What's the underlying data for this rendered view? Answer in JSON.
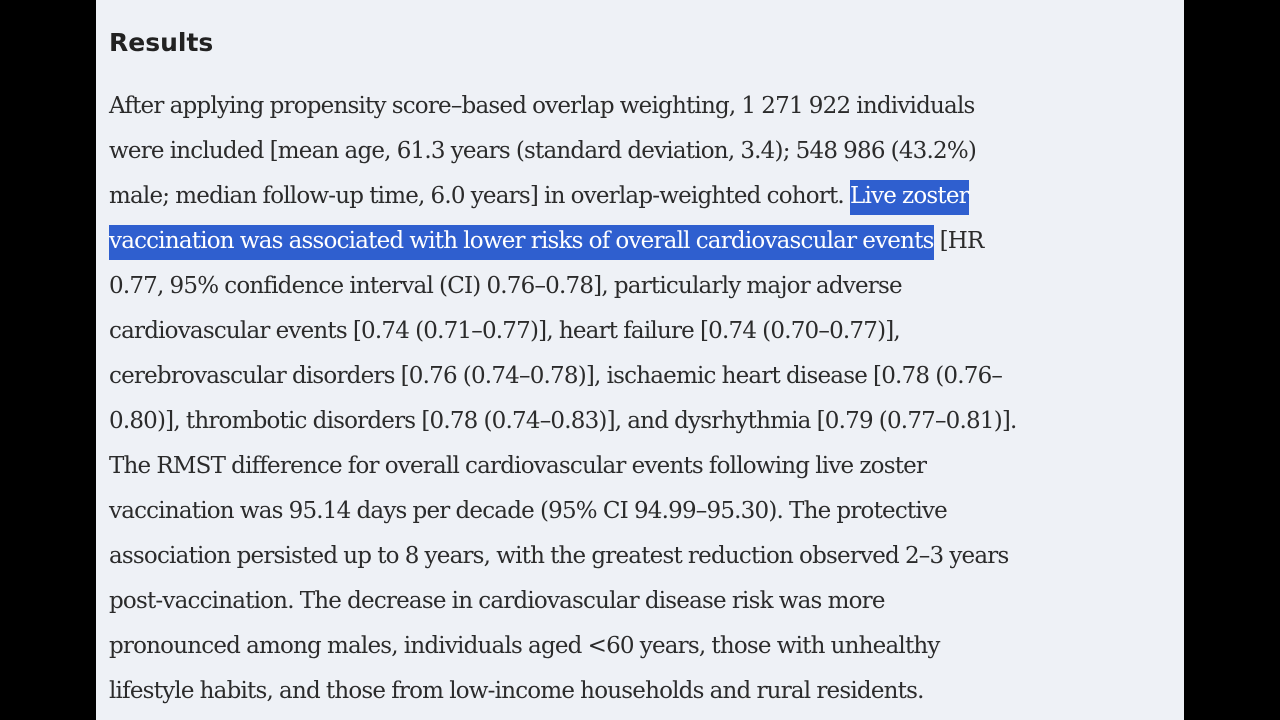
{
  "section": {
    "heading": "Results"
  },
  "paragraph": {
    "line1": "After applying propensity score–based overlap weighting, 1 271 922 individuals",
    "line2": "were included [mean age, 61.3 years (standard deviation, 3.4); 548 986 (43.2%)",
    "line3_plain": "male; median follow-up time, 6.0 years] in overlap-weighted cohort. ",
    "line3_highlight": "Live zoster",
    "line4_highlight": "vaccination was associated with lower risks of overall cardiovascular events",
    "line4_plain": " [HR",
    "line5": "0.77, 95% confidence interval (CI) 0.76–0.78], particularly major adverse",
    "line6": "cardiovascular events [0.74 (0.71–0.77)], heart failure [0.74 (0.70–0.77)],",
    "line7": "cerebrovascular disorders [0.76 (0.74–0.78)], ischaemic heart disease [0.78 (0.76–",
    "line8": "0.80)], thrombotic disorders [0.78 (0.74–0.83)], and dysrhythmia [0.79 (0.77–0.81)].",
    "line9": "The RMST difference for overall cardiovascular events following live zoster",
    "line10": "vaccination was 95.14 days per decade (95% CI 94.99–95.30). The protective",
    "line11": "association persisted up to 8 years, with the greatest reduction observed 2–3 years",
    "line12": "post-vaccination. The decrease in cardiovascular disease risk was more",
    "line13": "pronounced among males, individuals aged <60 years, those with unhealthy",
    "line14": "lifestyle habits, and those from low-income households and rural residents."
  },
  "colors": {
    "page_background": "#eef1f6",
    "letterbox": "#000000",
    "highlight": "#2f5fcf",
    "text": "#2b2b2b"
  }
}
